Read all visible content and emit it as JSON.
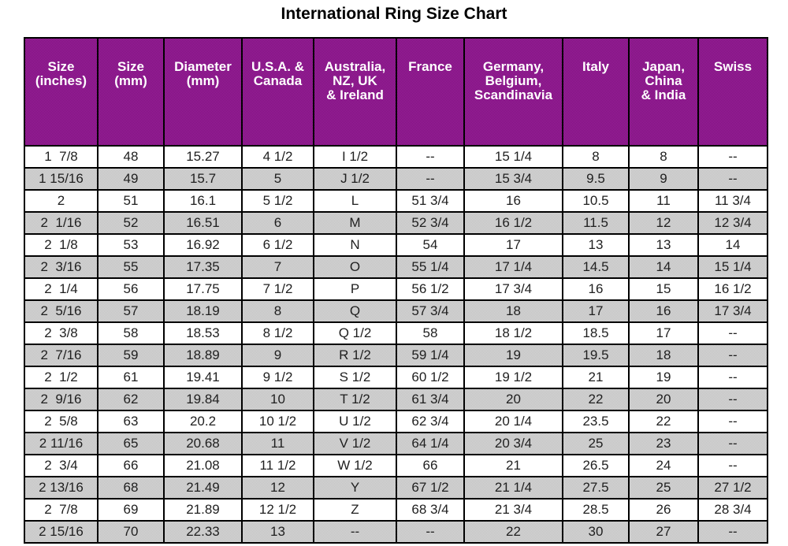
{
  "title": "International Ring Size Chart",
  "colors": {
    "header_bg": "#8b1a8b",
    "header_bg_light": "#9c259c",
    "header_bg_dark": "#7c0e7c",
    "header_text": "#ffffff",
    "row_bg": "#ffffff",
    "row_alt_bg": "#cccccc",
    "row_alt_light": "#d6d6d6",
    "row_alt_dark": "#c2c2c2",
    "border": "#000000",
    "cell_text": "#1f1f1f",
    "title_text": "#000000"
  },
  "chart_data": {
    "type": "table",
    "title": "International Ring Size Chart",
    "columns": [
      "Size\n(inches)",
      "Size\n(mm)",
      "Diameter\n(mm)",
      "U.S.A. &\nCanada",
      "Australia,\nNZ, UK\n& Ireland",
      "France",
      "Germany,\nBelgium,\nScandinavia",
      "Italy",
      "Japan,\nChina\n& India",
      "Swiss"
    ],
    "rows": [
      [
        "1  7/8",
        "48",
        "15.27",
        "4 1/2",
        "I 1/2",
        "--",
        "15 1/4",
        "8",
        "8",
        "--"
      ],
      [
        "1 15/16",
        "49",
        "15.7",
        "5",
        "J 1/2",
        "--",
        "15 3/4",
        "9.5",
        "9",
        "--"
      ],
      [
        "2",
        "51",
        "16.1",
        "5 1/2",
        "L",
        "51 3/4",
        "16",
        "10.5",
        "11",
        "11 3/4"
      ],
      [
        "2  1/16",
        "52",
        "16.51",
        "6",
        "M",
        "52 3/4",
        "16 1/2",
        "11.5",
        "12",
        "12 3/4"
      ],
      [
        "2  1/8",
        "53",
        "16.92",
        "6 1/2",
        "N",
        "54",
        "17",
        "13",
        "13",
        "14"
      ],
      [
        "2  3/16",
        "55",
        "17.35",
        "7",
        "O",
        "55 1/4",
        "17 1/4",
        "14.5",
        "14",
        "15 1/4"
      ],
      [
        "2  1/4",
        "56",
        "17.75",
        "7 1/2",
        "P",
        "56 1/2",
        "17 3/4",
        "16",
        "15",
        "16 1/2"
      ],
      [
        "2  5/16",
        "57",
        "18.19",
        "8",
        "Q",
        "57 3/4",
        "18",
        "17",
        "16",
        "17 3/4"
      ],
      [
        "2  3/8",
        "58",
        "18.53",
        "8 1/2",
        "Q 1/2",
        "58",
        "18 1/2",
        "18.5",
        "17",
        "--"
      ],
      [
        "2  7/16",
        "59",
        "18.89",
        "9",
        "R 1/2",
        "59 1/4",
        "19",
        "19.5",
        "18",
        "--"
      ],
      [
        "2  1/2",
        "61",
        "19.41",
        "9 1/2",
        "S 1/2",
        "60 1/2",
        "19 1/2",
        "21",
        "19",
        "--"
      ],
      [
        "2  9/16",
        "62",
        "19.84",
        "10",
        "T 1/2",
        "61 3/4",
        "20",
        "22",
        "20",
        "--"
      ],
      [
        "2  5/8",
        "63",
        "20.2",
        "10 1/2",
        "U 1/2",
        "62 3/4",
        "20 1/4",
        "23.5",
        "22",
        "--"
      ],
      [
        "2 11/16",
        "65",
        "20.68",
        "11",
        "V 1/2",
        "64 1/4",
        "20 3/4",
        "25",
        "23",
        "--"
      ],
      [
        "2  3/4",
        "66",
        "21.08",
        "11 1/2",
        "W 1/2",
        "66",
        "21",
        "26.5",
        "24",
        "--"
      ],
      [
        "2 13/16",
        "68",
        "21.49",
        "12",
        "Y",
        "67 1/2",
        "21 1/4",
        "27.5",
        "25",
        "27 1/2"
      ],
      [
        "2  7/8",
        "69",
        "21.89",
        "12 1/2",
        "Z",
        "68 3/4",
        "21 3/4",
        "28.5",
        "26",
        "28 3/4"
      ],
      [
        "2 15/16",
        "70",
        "22.33",
        "13",
        "--",
        "--",
        "22",
        "30",
        "27",
        "--"
      ]
    ]
  }
}
